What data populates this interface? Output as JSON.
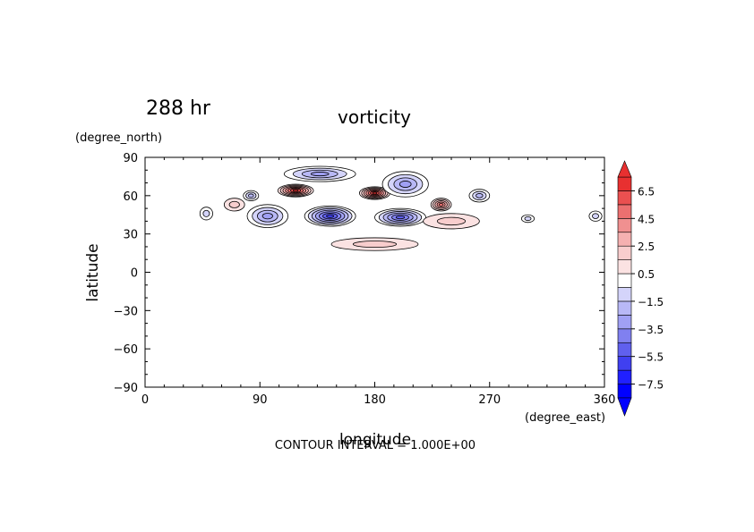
{
  "chart_data": {
    "type": "contour",
    "title": "vorticity",
    "time_label": "288 hr",
    "xlabel": "longitude",
    "ylabel": "latitude",
    "x_units": "(degree_east)",
    "y_units": "(degree_north)",
    "xlim": [
      0,
      360
    ],
    "ylim": [
      -90,
      90
    ],
    "x_ticks": [
      0,
      90,
      180,
      270,
      360
    ],
    "y_ticks": [
      90,
      60,
      30,
      0,
      -30,
      -60,
      -90
    ],
    "footer": "CONTOUR INTERVAL = 1.000E+00",
    "colorbar": {
      "tick_labels": [
        "6.5",
        "4.5",
        "2.5",
        "0.5",
        "-1.5",
        "-3.5",
        "-5.5",
        "-7.5"
      ],
      "levels": [
        -8.5,
        -7.5,
        -6.5,
        -5.5,
        -4.5,
        -3.5,
        -2.5,
        -1.5,
        -0.5,
        0.5,
        1.5,
        2.5,
        3.5,
        4.5,
        5.5,
        6.5,
        7.5
      ],
      "colors": [
        "#0000ff",
        "#2020ff",
        "#4040f0",
        "#6060ee",
        "#8080f0",
        "#a0a0f4",
        "#b8b8f6",
        "#d4d4fa",
        "#ffffff",
        "#fbe2e2",
        "#f8cdcd",
        "#f5b0b0",
        "#f09090",
        "#ec7070",
        "#ea5050",
        "#e83030"
      ]
    },
    "features": [
      {
        "lon": 118,
        "lat": 64,
        "value": 6.5,
        "rlon": 14,
        "rlat": 5
      },
      {
        "lon": 180,
        "lat": 62,
        "value": 6.5,
        "rlon": 12,
        "rlat": 5
      },
      {
        "lon": 232,
        "lat": 53,
        "value": 4.5,
        "rlon": 8,
        "rlat": 5
      },
      {
        "lon": 137,
        "lat": 77,
        "value": -3.5,
        "rlon": 28,
        "rlat": 6
      },
      {
        "lon": 145,
        "lat": 44,
        "value": -6.5,
        "rlon": 20,
        "rlat": 8
      },
      {
        "lon": 200,
        "lat": 43,
        "value": -5.5,
        "rlon": 20,
        "rlat": 7
      },
      {
        "lon": 204,
        "lat": 69,
        "value": -3.5,
        "rlon": 18,
        "rlat": 10
      },
      {
        "lon": 96,
        "lat": 44,
        "value": -3.5,
        "rlon": 16,
        "rlat": 9
      },
      {
        "lon": 240,
        "lat": 40,
        "value": 1.5,
        "rlon": 22,
        "rlat": 6
      },
      {
        "lon": 262,
        "lat": 60,
        "value": -2.5,
        "rlon": 8,
        "rlat": 5
      },
      {
        "lon": 48,
        "lat": 46,
        "value": -1.5,
        "rlon": 5,
        "rlat": 5
      },
      {
        "lon": 83,
        "lat": 60,
        "value": -2.5,
        "rlon": 6,
        "rlat": 4
      },
      {
        "lon": 353,
        "lat": 44,
        "value": -1.5,
        "rlon": 5,
        "rlat": 4
      },
      {
        "lon": 300,
        "lat": 42,
        "value": -1.5,
        "rlon": 5,
        "rlat": 3
      },
      {
        "lon": 180,
        "lat": 22,
        "value": 1.5,
        "rlon": 34,
        "rlat": 5
      },
      {
        "lon": 70,
        "lat": 53,
        "value": 1.5,
        "rlon": 8,
        "rlat": 5
      }
    ]
  }
}
